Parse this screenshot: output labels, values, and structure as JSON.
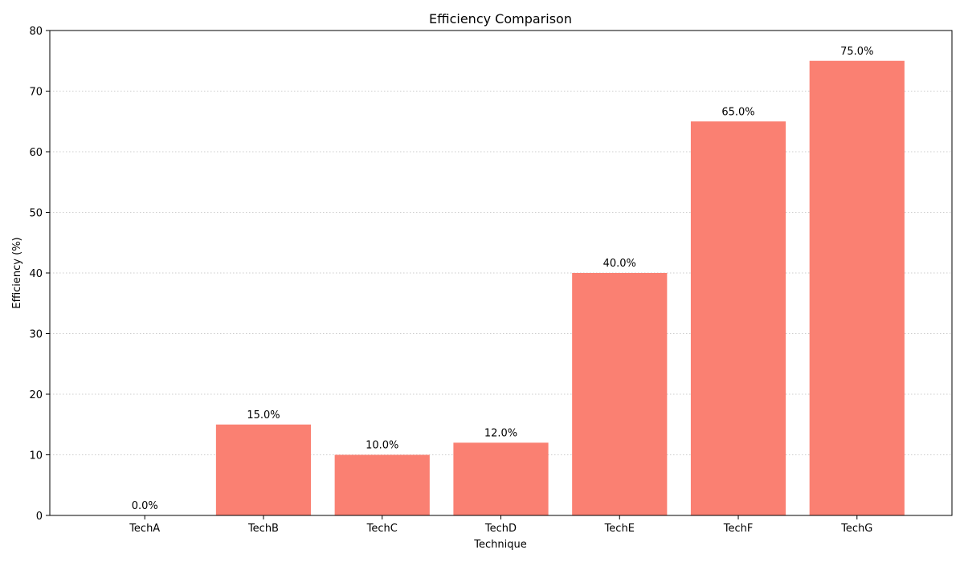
{
  "chart_data": {
    "type": "bar",
    "title": "Efficiency Comparison",
    "xlabel": "Technique",
    "ylabel": "Efficiency (%)",
    "categories": [
      "TechA",
      "TechB",
      "TechC",
      "TechD",
      "TechE",
      "TechF",
      "TechG"
    ],
    "values": [
      0.0,
      15.0,
      10.0,
      12.0,
      40.0,
      65.0,
      75.0
    ],
    "data_labels": [
      "0.0%",
      "15.0%",
      "10.0%",
      "12.0%",
      "40.0%",
      "65.0%",
      "75.0%"
    ],
    "ylim": [
      0,
      80
    ],
    "yticks": [
      0,
      10,
      20,
      30,
      40,
      50,
      60,
      70,
      80
    ],
    "grid": "horizontal dotted",
    "bar_color": "#fa8072",
    "grid_color": "#cccccc"
  }
}
